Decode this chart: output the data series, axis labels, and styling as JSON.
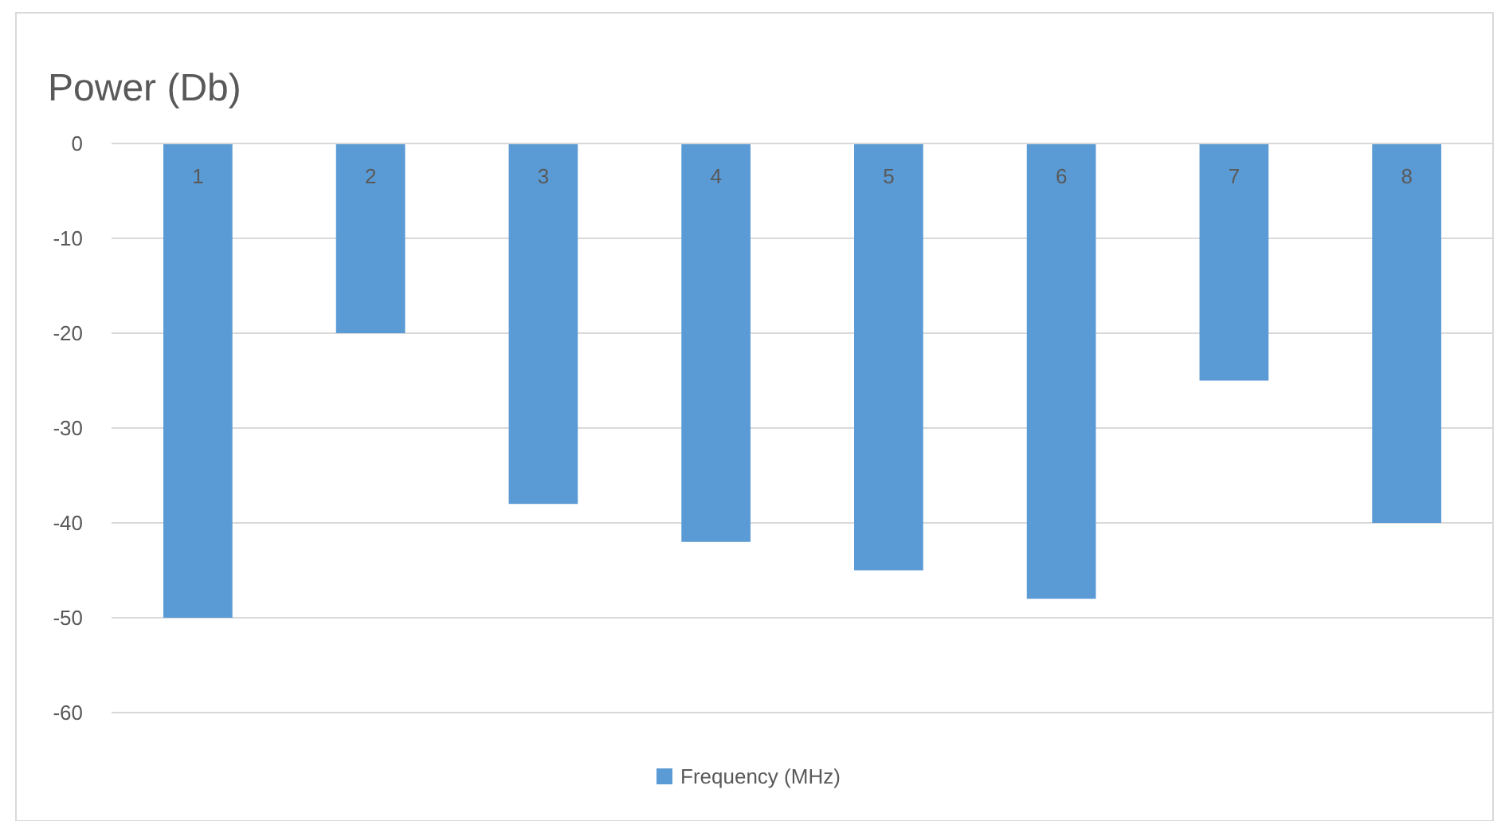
{
  "chart_data": {
    "type": "bar",
    "title": "Power (Db)",
    "categories": [
      "1",
      "2",
      "3",
      "4",
      "5",
      "6",
      "7",
      "8"
    ],
    "series": [
      {
        "name": "Frequency (MHz)",
        "color": "#5b9bd5",
        "values": [
          -50,
          -20,
          -38,
          -42,
          -45,
          -48,
          -25,
          -40
        ]
      }
    ],
    "ylim": [
      -60,
      0
    ],
    "yticks": [
      0,
      -10,
      -20,
      -30,
      -40,
      -50,
      -60
    ],
    "grid": "y",
    "legend": "bottom"
  }
}
